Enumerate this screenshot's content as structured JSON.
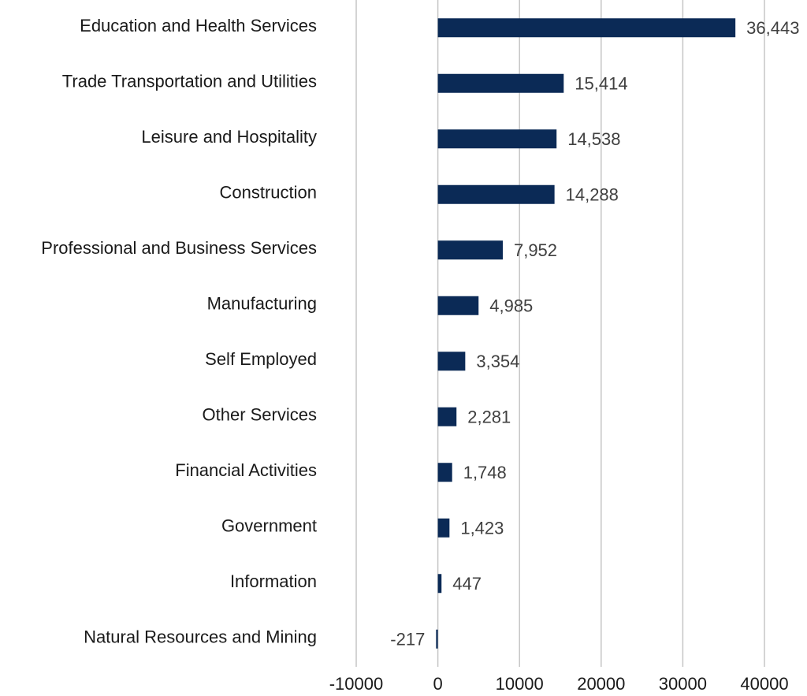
{
  "chart_data": {
    "type": "barh",
    "categories": [
      "Education and Health Services",
      "Trade Transportation and Utilities",
      "Leisure and Hospitality",
      "Construction",
      "Professional and Business Services",
      "Manufacturing",
      "Self Employed",
      "Other Services",
      "Financial Activities",
      "Government",
      "Information",
      "Natural Resources and Mining"
    ],
    "values": [
      36443,
      15414,
      14538,
      14288,
      7952,
      4985,
      3354,
      2281,
      1748,
      1423,
      447,
      -217
    ],
    "value_labels": [
      "36,443",
      "15,414",
      "14,538",
      "14,288",
      "7,952",
      "4,985",
      "3,354",
      "2,281",
      "1,748",
      "1,423",
      "447",
      "-217"
    ],
    "color": "#0b2a56",
    "xlim": [
      -10000,
      40000
    ],
    "xticks": [
      -10000,
      0,
      10000,
      20000,
      30000,
      40000
    ],
    "grid": true
  }
}
